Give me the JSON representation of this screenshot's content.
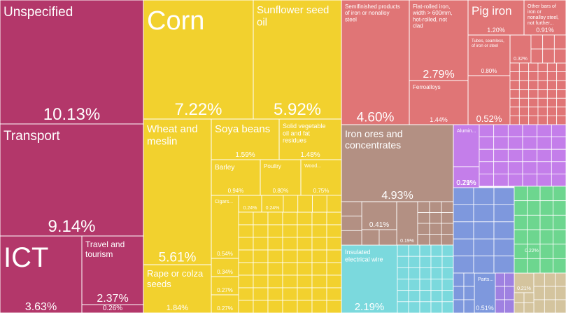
{
  "chart_data": {
    "type": "treemap",
    "title": "",
    "colors": {
      "services": "#B3376A",
      "vegetable": "#F2D12E",
      "metals": "#E07576",
      "mineral": "#B39083",
      "machines": "#7BD9DD",
      "chemicals": "#C47EEA",
      "transportation": "#7E98DD",
      "textiles": "#6DD68F",
      "instruments": "#9F81E1",
      "stone": "#D4C49E",
      "paper": "#4B9ACB"
    },
    "items": [
      {
        "name": "Unspecified",
        "value": "10.13%",
        "group": "services"
      },
      {
        "name": "Transport",
        "value": "9.14%",
        "group": "services"
      },
      {
        "name": "ICT",
        "value": "3.63%",
        "group": "services"
      },
      {
        "name": "Travel and tourism",
        "value": "2.37%",
        "group": "services"
      },
      {
        "name": "",
        "value": "0.26%",
        "group": "services"
      },
      {
        "name": "Corn",
        "value": "7.22%",
        "group": "vegetable"
      },
      {
        "name": "Sunflower seed oil",
        "value": "5.92%",
        "group": "vegetable"
      },
      {
        "name": "Wheat and meslin",
        "value": "5.61%",
        "group": "vegetable"
      },
      {
        "name": "Soya beans",
        "value": "1.59%",
        "group": "vegetable"
      },
      {
        "name": "Solid vegetable oil and fat residues",
        "value": "1.48%",
        "group": "vegetable"
      },
      {
        "name": "Rape or colza seeds",
        "value": "1.84%",
        "group": "vegetable"
      },
      {
        "name": "Barley",
        "value": "0.94%",
        "group": "vegetable"
      },
      {
        "name": "Poultry",
        "value": "0.80%",
        "group": "vegetable"
      },
      {
        "name": "Wood...",
        "value": "0.75%",
        "group": "vegetable"
      },
      {
        "name": "Cigars...",
        "value": "0.54%",
        "group": "vegetable"
      },
      {
        "name": "",
        "value": "0.24%",
        "group": "vegetable"
      },
      {
        "name": "",
        "value": "0.24%",
        "group": "vegetable"
      },
      {
        "name": "",
        "value": "0.34%",
        "group": "vegetable"
      },
      {
        "name": "",
        "value": "0.27%",
        "group": "vegetable"
      },
      {
        "name": "",
        "value": "0.27%",
        "group": "vegetable"
      },
      {
        "name": "Semifinished products of iron or nonalloy steel",
        "value": "4.60%",
        "group": "metals"
      },
      {
        "name": "Flat-rolled iron, width > 600mm, hot-rolled, not clad",
        "value": "2.79%",
        "group": "metals"
      },
      {
        "name": "Ferroalloys",
        "value": "1.44%",
        "group": "metals"
      },
      {
        "name": "Pig iron",
        "value": "1.20%",
        "group": "metals"
      },
      {
        "name": "Other bars of iron or nonalloy steel, not further...",
        "value": "0.91%",
        "group": "metals"
      },
      {
        "name": "Tubes, seamless, of iron or steel",
        "value": "0.80%",
        "group": "metals"
      },
      {
        "name": "",
        "value": "0.32%",
        "group": "metals"
      },
      {
        "name": "",
        "value": "0.52%",
        "group": "metals"
      },
      {
        "name": "Iron ores and concentrates",
        "value": "4.93%",
        "group": "mineral"
      },
      {
        "name": "",
        "value": "0.41%",
        "group": "mineral"
      },
      {
        "name": "",
        "value": "0.19%",
        "group": "mineral"
      },
      {
        "name": "Insulated electrical wire",
        "value": "2.19%",
        "group": "machines"
      },
      {
        "name": "Alumin...",
        "value": "0.71%",
        "group": "chemicals"
      },
      {
        "name": "",
        "value": "0.29%",
        "group": "chemicals"
      },
      {
        "name": "",
        "value": "0.22%",
        "group": "textiles"
      },
      {
        "name": "Parts...",
        "value": "0.51%",
        "group": "transportation"
      },
      {
        "name": "",
        "value": "0.21%",
        "group": "stone"
      }
    ]
  }
}
